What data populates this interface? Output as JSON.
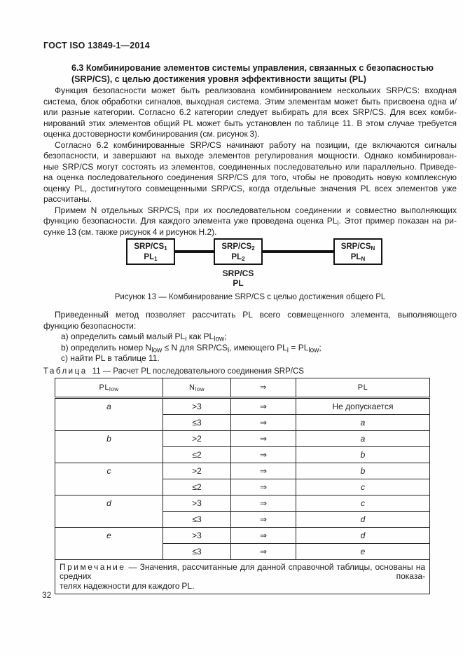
{
  "page": {
    "header": "ГОСТ ISO 13849-1—2014",
    "page_number": "32"
  },
  "section": {
    "heading_lines": [
      "6.3  Комбинирование элементов системы управления, связанных с безопасностью",
      "(SRP/CS), с целью достижения уровня эффективности защиты (PL)"
    ]
  },
  "paragraphs": {
    "p1": [
      "Функция безопасности может быть реализована комбинированием нескольких SRP/CS: входная",
      "система, блок обработки сигналов, выходная система. Этим элементам может быть присвоена одна и/",
      "или разные категории. Согласно 6.2 категории следует выбирать для всех SRP/CS. Для всех комби-",
      "нирований этих элементов общий PL может быть установлен по таблице 11. В этом случае требуется",
      "оценка достоверности комбинирования (см. рисунок 3)."
    ],
    "p2": [
      "Согласно 6.2 комбинированные SRP/CS начинают работу на позиции, где включаются сигналы",
      "безопасности, и завершают на выходе элементов регулирования мощности. Однако комбинирован-",
      "ные SRP/CS могут состоять из элементов, соединенных последовательно или параллельно. Приведе-",
      "на оценка последовательного соединения SRP/CS для того, чтобы не проводить новую комплексную",
      "оценку PL, достигнутого совмещенными SRP/CS, когда отдельные значения PL всех элементов уже",
      "рассчитаны."
    ],
    "p3": [
      [
        {
          "t": "Примем N отдельных SRP/CS"
        },
        {
          "t": "i",
          "sub": true
        },
        {
          "t": " при их последовательном соединении и совместно выполняющих"
        }
      ],
      [
        {
          "t": "функцию безопасности. Для каждого элемента уже проведена оценка PL"
        },
        {
          "t": "i",
          "sub": true
        },
        {
          "t": ". Этот пример показан на ри-"
        }
      ],
      "сунке 13 (см. также рисунок 4 и рисунок H.2)."
    ],
    "p4": [
      "Приведенный метод позволяет рассчитать PL всего совмещенного элемента, выполняющего",
      "функцию безопасности:"
    ],
    "list": [
      [
        {
          "t": "a) определить самый малый PL"
        },
        {
          "t": "i",
          "sub": true
        },
        {
          "t": " как PL"
        },
        {
          "t": "low",
          "sub": true
        },
        {
          "t": ";"
        }
      ],
      [
        {
          "t": "b) определить номер N"
        },
        {
          "t": "low",
          "sub": true
        },
        {
          "t": " ≤ N для SRP/CS"
        },
        {
          "t": "i",
          "sub": true
        },
        {
          "t": ", имеющего PL"
        },
        {
          "t": "i",
          "sub": true
        },
        {
          "t": " = PL"
        },
        {
          "t": "low",
          "sub": true
        },
        {
          "t": ";"
        }
      ],
      "c) найти PL в таблице 11."
    ]
  },
  "figure": {
    "boxes": [
      {
        "title": [
          {
            "t": "SRP/CS"
          },
          {
            "t": "1",
            "sub": true
          }
        ],
        "pl": [
          {
            "t": "PL"
          },
          {
            "t": "1",
            "sub": true
          }
        ]
      },
      {
        "title": [
          {
            "t": "SRP/CS"
          },
          {
            "t": "2",
            "sub": true
          }
        ],
        "pl": [
          {
            "t": "PL"
          },
          {
            "t": "2",
            "sub": true
          }
        ]
      },
      {
        "title": [
          {
            "t": "SRP/CS"
          },
          {
            "t": "N",
            "sub": true
          }
        ],
        "pl": [
          {
            "t": "PL"
          },
          {
            "t": "N",
            "sub": true
          }
        ]
      }
    ],
    "center_label_line1": "SRP/CS",
    "center_label_line2": "PL",
    "caption": "Рисунок 13 — Комбинирование SRP/CS с целью достижения общего PL"
  },
  "table": {
    "label_word": "Таблица",
    "label_rest": "11 — Расчет PL последовательного соединения SRP/CS",
    "headers": {
      "pl_low": [
        {
          "t": "PL"
        },
        {
          "t": "low",
          "sub": true
        }
      ],
      "n_low": [
        {
          "t": "N"
        },
        {
          "t": "low",
          "sub": true
        }
      ],
      "arrow": "⇒",
      "pl": "PL"
    },
    "arrow_symbol": "⇒",
    "groups": [
      {
        "pl_low": "a",
        "rows": [
          {
            "n": ">3",
            "pl": "Не допускается",
            "pl_italic": false
          },
          {
            "n": "≤3",
            "pl": "a",
            "pl_italic": true
          }
        ]
      },
      {
        "pl_low": "b",
        "rows": [
          {
            "n": ">2",
            "pl": "a",
            "pl_italic": true
          },
          {
            "n": "≤2",
            "pl": "b",
            "pl_italic": true
          }
        ]
      },
      {
        "pl_low": "c",
        "rows": [
          {
            "n": ">2",
            "pl": "b",
            "pl_italic": true
          },
          {
            "n": "≤2",
            "pl": "c",
            "pl_italic": true
          }
        ]
      },
      {
        "pl_low": "d",
        "rows": [
          {
            "n": ">3",
            "pl": "c",
            "pl_italic": true
          },
          {
            "n": "≤3",
            "pl": "d",
            "pl_italic": true
          }
        ]
      },
      {
        "pl_low": "e",
        "rows": [
          {
            "n": ">3",
            "pl": "d",
            "pl_italic": true
          },
          {
            "n": "≤3",
            "pl": "e",
            "pl_italic": true
          }
        ]
      }
    ],
    "note_lines": [
      [
        {
          "t": "Примечание",
          "ls": true
        },
        {
          "t": " — Значения, рассчитанные для данной справочной таблицы, основаны на средних показа-"
        }
      ],
      "телях надежности для каждого PL."
    ]
  }
}
